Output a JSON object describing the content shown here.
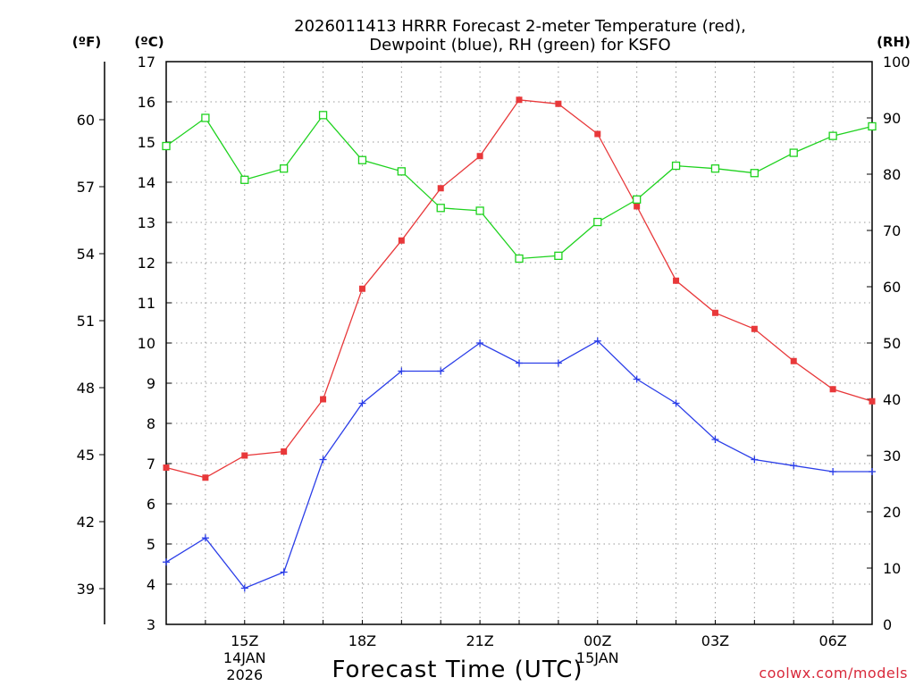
{
  "chart_data": {
    "type": "line",
    "title_line1": "2026011413 HRRR Forecast 2-meter Temperature (red),",
    "title_line2": "Dewpoint (blue), RH (green) for KSFO",
    "unit_f": "(ºF)",
    "unit_c": "(ºC)",
    "unit_rh": "(RH)",
    "xlabel": "Forecast Time (UTC)",
    "credit": "coolwx.com/models",
    "x": [
      13,
      14,
      15,
      16,
      17,
      18,
      19,
      20,
      21,
      22,
      23,
      24,
      25,
      26,
      27,
      28,
      29,
      30,
      31
    ],
    "xlim": [
      13,
      31
    ],
    "x_ticks": [
      {
        "x": 15,
        "label": "15Z"
      },
      {
        "x": 18,
        "label": "18Z"
      },
      {
        "x": 21,
        "label": "21Z"
      },
      {
        "x": 24,
        "label": "00Z"
      },
      {
        "x": 27,
        "label": "03Z"
      },
      {
        "x": 30,
        "label": "06Z"
      }
    ],
    "date_labels": [
      {
        "x": 15,
        "lines": [
          "14JAN",
          "2026"
        ]
      },
      {
        "x": 24,
        "lines": [
          "15JAN"
        ]
      }
    ],
    "ylim_c": [
      3,
      17
    ],
    "y_ticks_c": [
      "3",
      "4",
      "5",
      "6",
      "7",
      "8",
      "9",
      "10",
      "11",
      "12",
      "13",
      "14",
      "15",
      "16",
      "17"
    ],
    "y_ticks_f": [
      "39",
      "42",
      "45",
      "48",
      "51",
      "54",
      "57",
      "60"
    ],
    "ylim_rh": [
      0,
      100
    ],
    "y_ticks_rh": [
      "0",
      "10",
      "20",
      "30",
      "40",
      "50",
      "60",
      "70",
      "80",
      "90",
      "100"
    ],
    "series": [
      {
        "name": "Temperature",
        "axis": "c",
        "color": "#e8383a",
        "marker": "filled-square",
        "values": [
          6.9,
          6.65,
          7.2,
          7.3,
          8.6,
          11.35,
          12.55,
          13.85,
          14.65,
          16.05,
          15.95,
          15.2,
          13.4,
          11.55,
          10.75,
          10.35,
          9.55,
          8.85,
          8.55
        ]
      },
      {
        "name": "Dewpoint",
        "axis": "c",
        "color": "#2b3ee8",
        "marker": "plus",
        "values": [
          4.55,
          5.15,
          3.9,
          4.3,
          7.1,
          8.5,
          9.3,
          9.3,
          10.0,
          9.5,
          9.5,
          10.05,
          9.1,
          8.5,
          7.6,
          7.1,
          6.95,
          6.8,
          6.8
        ]
      },
      {
        "name": "RH",
        "axis": "rh",
        "color": "#1ed21e",
        "marker": "open-square",
        "values": [
          85,
          90,
          79,
          81,
          90.5,
          82.5,
          80.5,
          74,
          73.5,
          65,
          65.5,
          71.5,
          75.5,
          81.5,
          81,
          80.2,
          83.8,
          86.8,
          88.5
        ]
      }
    ]
  }
}
